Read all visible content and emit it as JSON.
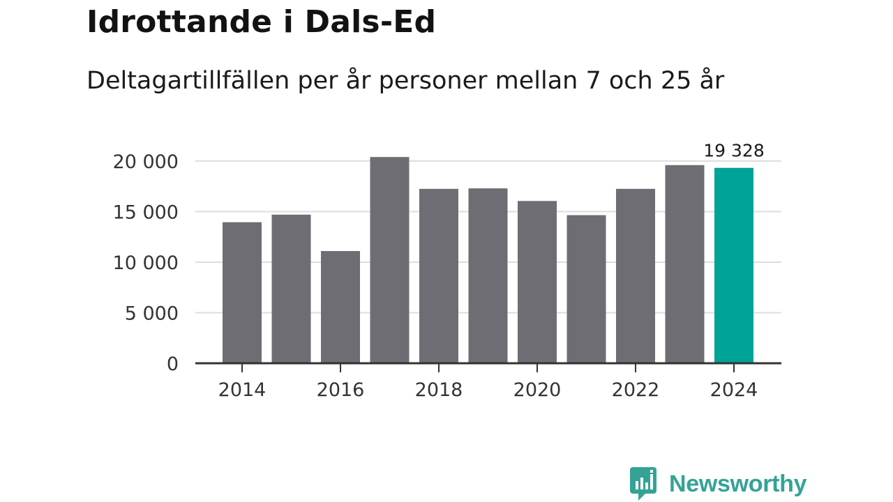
{
  "colors": {
    "bar": "#6e6d73",
    "highlight": "#00a397",
    "grid": "#dddddd",
    "axis": "#333333",
    "brand": "#34a396"
  },
  "brand": {
    "name": "Newsworthy",
    "icon": "newsworthy-bar-chart-icon"
  },
  "chart_data": {
    "type": "bar",
    "title": "Idrottande i Dals-Ed",
    "subtitle": "Deltagartillfällen per år personer mellan 7 och 25 år",
    "xlabel": "",
    "ylabel": "",
    "categories": [
      "2014",
      "2015",
      "2016",
      "2017",
      "2018",
      "2019",
      "2020",
      "2021",
      "2022",
      "2023",
      "2024"
    ],
    "values": [
      13950,
      14700,
      11100,
      20400,
      17250,
      17300,
      16050,
      14650,
      17250,
      19600,
      19328
    ],
    "highlight_index": 10,
    "highlight_label": "19 328",
    "ylim": [
      0,
      20000
    ],
    "yticks": [
      0,
      5000,
      10000,
      15000,
      20000
    ],
    "ytick_labels": [
      "0",
      "5 000",
      "10 000",
      "15 000",
      "20 000"
    ],
    "xtick_labels": [
      "2014",
      "",
      "2016",
      "",
      "2018",
      "",
      "2020",
      "",
      "2022",
      "",
      "2024"
    ],
    "grid": true,
    "legend": "none"
  }
}
